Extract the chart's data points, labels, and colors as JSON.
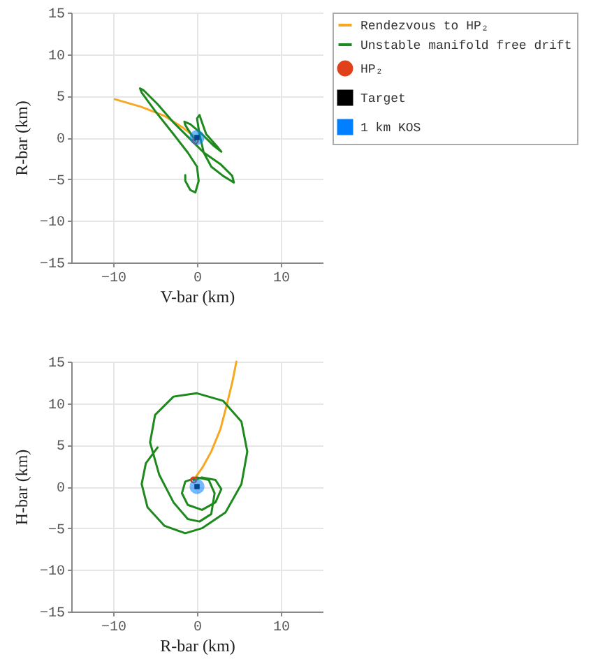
{
  "chart_data": [
    {
      "type": "line",
      "xlabel": "V-bar (km)",
      "ylabel": "R-bar (km)",
      "xlim": [
        -15,
        15
      ],
      "ylim": [
        -15,
        15
      ],
      "xticks": [
        -10,
        0,
        10
      ],
      "yticks": [
        -15,
        -10,
        -5,
        0,
        5,
        10,
        15
      ],
      "grid": true,
      "legend": "top right",
      "series": [
        {
          "name": "Rendezvous to HP₂",
          "color": "#f7a823",
          "x": [
            -9.8,
            -6.7,
            -3.9,
            -1.7,
            -0.3,
            -0.2
          ],
          "values": [
            4.6,
            3.7,
            2.6,
            1.2,
            0.1,
            -0.4
          ]
        },
        {
          "name": "Unstable manifold free drift",
          "color": "#1e8a1e",
          "x": [
            -0.2,
            -1.4,
            -1.5,
            -0.8,
            0.6,
            2.0,
            2.9,
            2.5,
            1.1,
            0.6,
            0.3,
            0,
            0.3,
            0.8,
            1.7,
            3.1,
            4.4,
            4.2,
            2.8,
            0.8,
            -0.8,
            -2.8,
            -4.7,
            -6.4,
            -6.8,
            -6.6,
            -5.0,
            -2.8,
            -1.1,
            0,
            0.2,
            -0.2,
            -0.8,
            -1.4,
            -1.4
          ],
          "values": [
            -0.4,
            1.5,
            1.9,
            1.6,
            0.4,
            -1.0,
            -1.7,
            -1.2,
            0.4,
            1.8,
            2.7,
            2.3,
            0.4,
            -1.8,
            -3.5,
            -4.6,
            -5.4,
            -4.6,
            -3.2,
            -1.8,
            -0.2,
            1.8,
            4.0,
            5.7,
            5.9,
            5.4,
            3.2,
            0.4,
            -1.8,
            -3.5,
            -5.2,
            -6.6,
            -6.3,
            -5.2,
            -4.5
          ]
        },
        {
          "name": "HP₂",
          "type": "scatter",
          "marker": "circle",
          "color": "#e0401a",
          "x": [
            -0.2
          ],
          "values": [
            -0.4
          ]
        },
        {
          "name": "Target",
          "type": "scatter",
          "marker": "square",
          "color": "#000000",
          "x": [
            0
          ],
          "values": [
            0
          ]
        },
        {
          "name": "1 km KOS",
          "type": "scatter",
          "marker": "circle",
          "color": "#0080ff",
          "x": [
            0
          ],
          "values": [
            0
          ],
          "sizes": [
            1
          ]
        }
      ]
    },
    {
      "type": "line",
      "xlabel": "R-bar (km)",
      "ylabel": "H-bar (km)",
      "xlim": [
        -15,
        15
      ],
      "ylim": [
        -15,
        15
      ],
      "xticks": [
        -10,
        0,
        10
      ],
      "yticks": [
        -15,
        -10,
        -5,
        0,
        5,
        10,
        15
      ],
      "grid": true,
      "series": [
        {
          "color": "#f7a823",
          "x": [
            -0.4,
            0.6,
            1.7,
            2.8,
            3.6,
            4.2,
            4.7
          ],
          "values": [
            0.8,
            2.2,
            4.2,
            6.9,
            10,
            12.5,
            15
          ]
        },
        {
          "color": "#1e8a1e",
          "x": [
            -0.4,
            0.6,
            2.2,
            2.9,
            2.2,
            0.6,
            -1.1,
            -1.8,
            -1.4,
            0,
            1.4,
            2.1,
            1.7,
            0.3,
            -1.1,
            -2.8,
            -4.5,
            -5.6,
            -5.0,
            -2.8,
            0,
            3.1,
            5.3,
            6.0,
            5.3,
            3.4,
            0.6,
            -1.4,
            -3.9,
            -5.9,
            -6.6,
            -6.1,
            -4.7
          ],
          "values": [
            0.8,
            1.1,
            0.8,
            -0.3,
            -1.9,
            -2.8,
            -2.2,
            -0.8,
            0.6,
            1.1,
            0.8,
            -0.8,
            -3.3,
            -4.2,
            -3.9,
            -1.9,
            1.4,
            5.3,
            8.6,
            10.8,
            11.2,
            10.3,
            7.8,
            4.2,
            0.3,
            -3.1,
            -5,
            -5.6,
            -4.7,
            -2.5,
            0.3,
            2.8,
            4.7
          ]
        },
        {
          "type": "scatter",
          "marker": "circle",
          "color": "#e0401a",
          "x": [
            -0.4
          ],
          "values": [
            0.8
          ]
        },
        {
          "type": "scatter",
          "marker": "square",
          "color": "#000000",
          "x": [
            0
          ],
          "values": [
            0
          ]
        },
        {
          "type": "scatter",
          "marker": "circle",
          "color": "#0080ff",
          "x": [
            0
          ],
          "values": [
            0
          ],
          "sizes": [
            1
          ]
        }
      ]
    }
  ]
}
